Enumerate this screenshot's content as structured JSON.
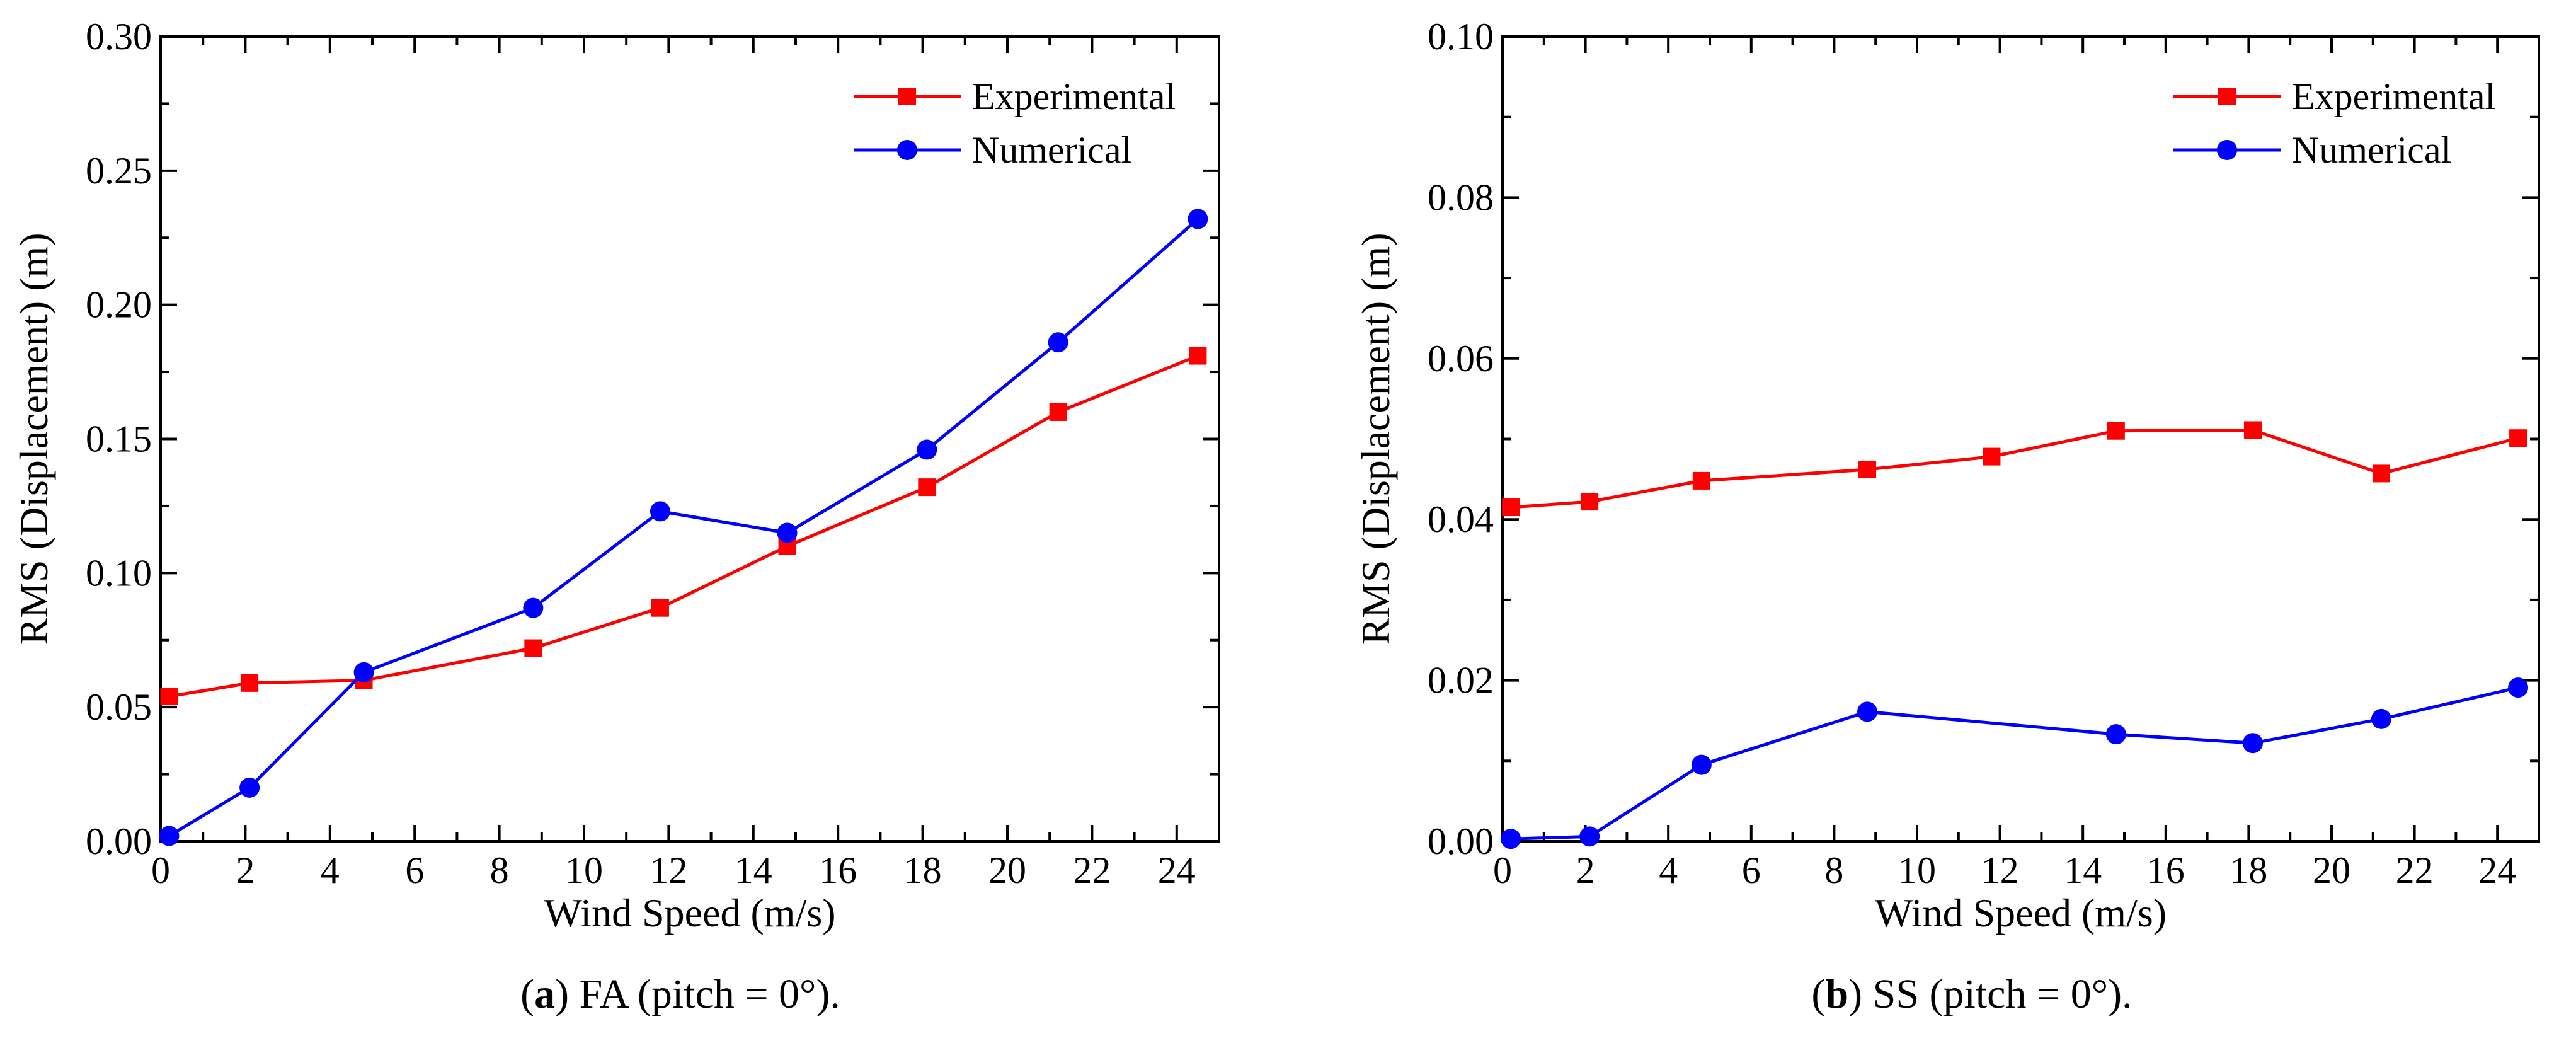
{
  "chart_data": [
    {
      "type": "line",
      "panel_letter": "a",
      "caption_text": " FA (pitch = 0°).",
      "xlabel": "Wind Speed (m/s)",
      "ylabel": "RMS (Displacement) (m)",
      "xlim": [
        0,
        25
      ],
      "ylim": [
        0,
        0.3
      ],
      "xticks": [
        "0",
        "2",
        "4",
        "6",
        "8",
        "10",
        "12",
        "14",
        "16",
        "18",
        "20",
        "22",
        "24"
      ],
      "xtick_values": [
        0,
        2,
        4,
        6,
        8,
        10,
        12,
        14,
        16,
        18,
        20,
        22,
        24
      ],
      "yticks": [
        "0.00",
        "0.05",
        "0.10",
        "0.15",
        "0.20",
        "0.25",
        "0.30"
      ],
      "ytick_values": [
        0,
        0.05,
        0.1,
        0.15,
        0.2,
        0.25,
        0.3
      ],
      "legend_position": "top-right",
      "series": [
        {
          "name": "Experimental",
          "color": "#ff0000",
          "marker": "square",
          "x": [
            0.2,
            2.1,
            4.8,
            8.8,
            11.8,
            14.8,
            18.1,
            21.2,
            24.5
          ],
          "values": [
            0.054,
            0.059,
            0.06,
            0.072,
            0.087,
            0.11,
            0.132,
            0.16,
            0.181
          ]
        },
        {
          "name": "Numerical",
          "color": "#0000ff",
          "marker": "circle",
          "x": [
            0.2,
            2.1,
            4.8,
            8.8,
            11.8,
            14.8,
            18.1,
            21.2,
            24.5
          ],
          "values": [
            0.002,
            0.02,
            0.063,
            0.087,
            0.123,
            0.115,
            0.146,
            0.186,
            0.232
          ]
        }
      ]
    },
    {
      "type": "line",
      "panel_letter": "b",
      "caption_text": " SS (pitch = 0°).",
      "xlabel": "Wind Speed (m/s)",
      "ylabel": "RMS (Displacement) (m)",
      "xlim": [
        0,
        25
      ],
      "ylim": [
        0,
        0.1
      ],
      "xticks": [
        "0",
        "2",
        "4",
        "6",
        "8",
        "10",
        "12",
        "14",
        "16",
        "18",
        "20",
        "22",
        "24"
      ],
      "xtick_values": [
        0,
        2,
        4,
        6,
        8,
        10,
        12,
        14,
        16,
        18,
        20,
        22,
        24
      ],
      "yticks": [
        "0.00",
        "0.02",
        "0.04",
        "0.06",
        "0.08",
        "0.10"
      ],
      "ytick_values": [
        0,
        0.02,
        0.04,
        0.06,
        0.08,
        0.1
      ],
      "legend_position": "top-right",
      "series": [
        {
          "name": "Experimental",
          "color": "#ff0000",
          "marker": "square",
          "x": [
            0.2,
            2.1,
            4.8,
            8.8,
            11.8,
            14.8,
            18.1,
            21.2,
            24.5
          ],
          "values": [
            0.0415,
            0.0422,
            0.0448,
            0.0462,
            0.0478,
            0.051,
            0.0511,
            0.0457,
            0.0501
          ]
        },
        {
          "name": "Numerical",
          "color": "#0000ff",
          "marker": "circle",
          "x": [
            0.2,
            2.1,
            4.8,
            8.8,
            11.8,
            14.8,
            18.1,
            21.2,
            24.5
          ],
          "values": [
            0.0003,
            0.0006,
            0.0095,
            0.0161,
            null,
            0.0133,
            0.0122,
            0.0152,
            0.0191
          ]
        }
      ]
    }
  ]
}
